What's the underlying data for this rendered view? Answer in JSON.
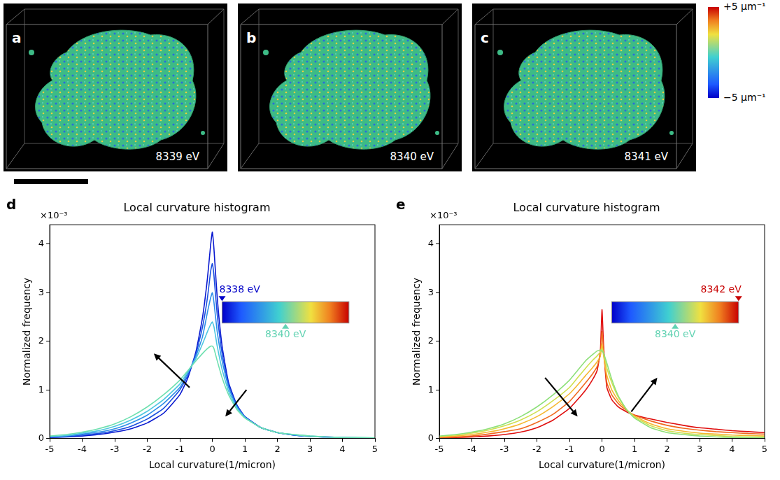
{
  "image_panels": [
    {
      "letter": "a",
      "label": "8339 eV"
    },
    {
      "letter": "b",
      "label": "8340 eV"
    },
    {
      "letter": "c",
      "label": "8341 eV"
    }
  ],
  "colorbar": {
    "range": [
      -5,
      5
    ],
    "ticks": [
      {
        "value": 5,
        "label": "+5 μm⁻¹"
      },
      {
        "value": -5,
        "label": "−5 μm⁻¹"
      }
    ]
  },
  "chart_data": [
    {
      "letter": "d",
      "type": "line",
      "title": "Local curvature histogram",
      "x_label": "Local curvature(1/micron)",
      "y_label": "Normalized frequency",
      "y_scale_label": "×10⁻³",
      "x": [
        -5,
        -4.5,
        -4,
        -3.5,
        -3,
        -2.5,
        -2,
        -1.5,
        -1,
        -0.75,
        -0.5,
        -0.3,
        -0.15,
        -0.05,
        0,
        0.05,
        0.15,
        0.3,
        0.5,
        0.75,
        1,
        1.5,
        2,
        2.5,
        3,
        3.5,
        4,
        4.5,
        5
      ],
      "xlim": [
        -5,
        5
      ],
      "xticks": [
        -5,
        -4,
        -3,
        -2,
        -1,
        0,
        1,
        2,
        3,
        4,
        5
      ],
      "ylim": [
        0,
        4.4
      ],
      "yticks": [
        0,
        1,
        2,
        3,
        4
      ],
      "grid": false,
      "series": [
        {
          "color": "#6ee0b0",
          "values": [
            0.05,
            0.08,
            0.13,
            0.2,
            0.3,
            0.45,
            0.65,
            0.9,
            1.2,
            1.4,
            1.6,
            1.75,
            1.85,
            1.9,
            1.9,
            1.85,
            1.6,
            1.25,
            0.9,
            0.6,
            0.42,
            0.22,
            0.12,
            0.08,
            0.05,
            0.03,
            0.02,
            0.02,
            0.01
          ]
        },
        {
          "color": "#4cc6e0",
          "values": [
            0.04,
            0.06,
            0.11,
            0.16,
            0.25,
            0.38,
            0.56,
            0.8,
            1.12,
            1.38,
            1.65,
            1.95,
            2.2,
            2.35,
            2.4,
            2.3,
            1.9,
            1.42,
            0.97,
            0.63,
            0.43,
            0.22,
            0.12,
            0.08,
            0.05,
            0.03,
            0.02,
            0.02,
            0.01
          ]
        },
        {
          "color": "#2f8fe8",
          "values": [
            0.03,
            0.05,
            0.09,
            0.13,
            0.2,
            0.32,
            0.48,
            0.72,
            1.05,
            1.35,
            1.7,
            2.1,
            2.6,
            2.9,
            3.0,
            2.8,
            2.2,
            1.6,
            1.05,
            0.66,
            0.44,
            0.22,
            0.12,
            0.07,
            0.04,
            0.03,
            0.02,
            0.01,
            0.01
          ]
        },
        {
          "color": "#1a4fe0",
          "values": [
            0.03,
            0.04,
            0.07,
            0.1,
            0.16,
            0.25,
            0.4,
            0.62,
            1.0,
            1.3,
            1.75,
            2.3,
            2.9,
            3.45,
            3.6,
            3.35,
            2.55,
            1.75,
            1.1,
            0.68,
            0.45,
            0.22,
            0.12,
            0.07,
            0.04,
            0.03,
            0.02,
            0.01,
            0.01
          ]
        },
        {
          "color": "#0a1ad0",
          "values": [
            0.02,
            0.03,
            0.05,
            0.08,
            0.13,
            0.2,
            0.32,
            0.52,
            0.9,
            1.25,
            1.8,
            2.5,
            3.3,
            4.0,
            4.25,
            3.9,
            2.9,
            1.9,
            1.15,
            0.7,
            0.45,
            0.22,
            0.12,
            0.07,
            0.04,
            0.03,
            0.02,
            0.01,
            0.01
          ]
        }
      ],
      "energy_colorbar": {
        "range": [
          8338,
          8342
        ],
        "ticks": [
          {
            "value": 8338,
            "label": "8338 eV"
          },
          {
            "value": 8340,
            "label": "8340 eV"
          }
        ]
      },
      "arrows": [
        {
          "from": [
            -0.7,
            1.05
          ],
          "to": [
            -1.8,
            1.75
          ]
        },
        {
          "from": [
            1.05,
            1.0
          ],
          "to": [
            0.4,
            0.45
          ]
        }
      ]
    },
    {
      "letter": "e",
      "type": "line",
      "title": "Local curvature histogram",
      "x_label": "Local curvature(1/micron)",
      "y_label": "Normalized frequency",
      "y_scale_label": "×10⁻³",
      "x": [
        -5,
        -4.5,
        -4,
        -3.5,
        -3,
        -2.5,
        -2,
        -1.5,
        -1,
        -0.75,
        -0.5,
        -0.3,
        -0.15,
        -0.05,
        0,
        0.05,
        0.15,
        0.3,
        0.5,
        0.75,
        1,
        1.5,
        2,
        2.5,
        3,
        3.5,
        4,
        4.5,
        5
      ],
      "xlim": [
        -5,
        5
      ],
      "xticks": [
        -5,
        -4,
        -3,
        -2,
        -1,
        0,
        1,
        2,
        3,
        4,
        5
      ],
      "ylim": [
        0,
        4.4
      ],
      "yticks": [
        0,
        1,
        2,
        3,
        4
      ],
      "grid": false,
      "series": [
        {
          "color": "#8ee07a",
          "values": [
            0.05,
            0.08,
            0.13,
            0.2,
            0.3,
            0.45,
            0.65,
            0.9,
            1.2,
            1.4,
            1.6,
            1.72,
            1.8,
            1.82,
            1.8,
            1.75,
            1.55,
            1.22,
            0.88,
            0.6,
            0.42,
            0.22,
            0.12,
            0.08,
            0.05,
            0.03,
            0.02,
            0.02,
            0.01
          ]
        },
        {
          "color": "#cfe050",
          "values": [
            0.04,
            0.07,
            0.11,
            0.17,
            0.26,
            0.38,
            0.55,
            0.78,
            1.05,
            1.25,
            1.45,
            1.6,
            1.7,
            1.78,
            1.85,
            1.75,
            1.45,
            1.15,
            0.85,
            0.6,
            0.44,
            0.26,
            0.16,
            0.11,
            0.08,
            0.06,
            0.04,
            0.03,
            0.03
          ]
        },
        {
          "color": "#f5b830",
          "values": [
            0.03,
            0.05,
            0.08,
            0.13,
            0.2,
            0.3,
            0.45,
            0.66,
            0.92,
            1.1,
            1.3,
            1.45,
            1.58,
            1.7,
            1.95,
            1.7,
            1.3,
            1.0,
            0.78,
            0.6,
            0.46,
            0.3,
            0.2,
            0.15,
            0.11,
            0.09,
            0.07,
            0.06,
            0.05
          ]
        },
        {
          "color": "#f06a20",
          "values": [
            0.02,
            0.03,
            0.05,
            0.09,
            0.14,
            0.2,
            0.33,
            0.5,
            0.76,
            0.95,
            1.15,
            1.32,
            1.48,
            1.72,
            2.2,
            1.8,
            1.15,
            0.9,
            0.72,
            0.58,
            0.48,
            0.36,
            0.27,
            0.21,
            0.17,
            0.14,
            0.12,
            0.1,
            0.09
          ]
        },
        {
          "color": "#e01010",
          "values": [
            0.01,
            0.02,
            0.03,
            0.05,
            0.08,
            0.13,
            0.22,
            0.38,
            0.62,
            0.8,
            1.0,
            1.2,
            1.4,
            1.8,
            2.65,
            1.9,
            1.05,
            0.8,
            0.65,
            0.55,
            0.48,
            0.4,
            0.33,
            0.27,
            0.22,
            0.19,
            0.16,
            0.14,
            0.12
          ]
        }
      ],
      "energy_colorbar": {
        "range": [
          8338,
          8342
        ],
        "ticks": [
          {
            "value": 8342,
            "label": "8342 eV"
          },
          {
            "value": 8340,
            "label": "8340 eV"
          }
        ]
      },
      "arrows": [
        {
          "from": [
            -1.75,
            1.25
          ],
          "to": [
            -0.75,
            0.45
          ]
        },
        {
          "from": [
            0.9,
            0.55
          ],
          "to": [
            1.7,
            1.25
          ]
        }
      ]
    }
  ]
}
